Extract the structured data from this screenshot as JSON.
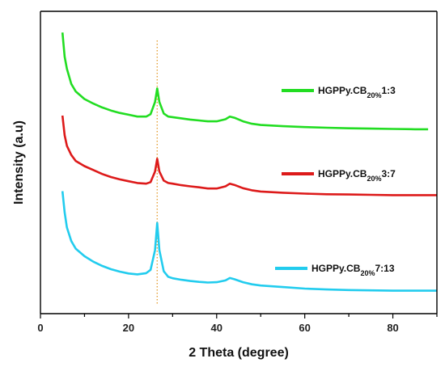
{
  "chart_data": {
    "type": "line",
    "title": "",
    "xlabel": "2 Theta (degree)",
    "ylabel": "Intensity (a.u)",
    "xlim": [
      0,
      90
    ],
    "y_ticks_shown": false,
    "x_ticks": [
      0,
      20,
      40,
      60,
      80
    ],
    "grid": false,
    "legend_position": "right, beside each trace",
    "reference_line": {
      "x": 26.5,
      "color": "#e39a2a",
      "style": "dotted"
    },
    "series": [
      {
        "name": "HGPPy.CB20%1:3",
        "label_main": "HGPPy.CB",
        "label_sub": "20%",
        "label_ratio": "1:3",
        "color": "#22dd22",
        "x": [
          5,
          5.5,
          6,
          7,
          8,
          10,
          12,
          14,
          16,
          18,
          20,
          22,
          24,
          25,
          26,
          26.5,
          27,
          28,
          29,
          30,
          32,
          34,
          36,
          38,
          40,
          42,
          43,
          44,
          46,
          48,
          50,
          55,
          60,
          65,
          70,
          75,
          80,
          85,
          88
        ],
        "y": [
          0.93,
          0.85,
          0.81,
          0.76,
          0.735,
          0.71,
          0.695,
          0.682,
          0.672,
          0.664,
          0.658,
          0.652,
          0.652,
          0.66,
          0.7,
          0.745,
          0.7,
          0.662,
          0.652,
          0.65,
          0.646,
          0.642,
          0.639,
          0.636,
          0.636,
          0.643,
          0.652,
          0.648,
          0.636,
          0.628,
          0.624,
          0.62,
          0.617,
          0.615,
          0.613,
          0.612,
          0.611,
          0.61,
          0.61
        ]
      },
      {
        "name": "HGPPy.CB20%3:7",
        "label_main": "HGPPy.CB",
        "label_sub": "20%",
        "label_ratio": "3:7",
        "color": "#dd1a1a",
        "x": [
          5,
          5.5,
          6,
          7,
          8,
          10,
          12,
          14,
          16,
          18,
          20,
          22,
          24,
          25,
          26,
          26.5,
          27,
          28,
          29,
          30,
          32,
          34,
          36,
          38,
          40,
          42,
          43,
          44,
          46,
          48,
          50,
          55,
          60,
          65,
          70,
          75,
          80,
          85,
          90
        ],
        "y": [
          0.655,
          0.59,
          0.555,
          0.525,
          0.505,
          0.488,
          0.475,
          0.462,
          0.452,
          0.444,
          0.438,
          0.432,
          0.43,
          0.435,
          0.47,
          0.512,
          0.47,
          0.44,
          0.432,
          0.43,
          0.425,
          0.421,
          0.418,
          0.414,
          0.414,
          0.421,
          0.43,
          0.426,
          0.415,
          0.408,
          0.404,
          0.4,
          0.397,
          0.395,
          0.394,
          0.393,
          0.392,
          0.392,
          0.392
        ]
      },
      {
        "name": "HGPPy.CB20%7:13",
        "label_main": "HGPPy.CB",
        "label_sub": "20%",
        "label_ratio": "7:13",
        "color": "#22ccee",
        "x": [
          5,
          5.5,
          6,
          7,
          8,
          10,
          12,
          14,
          16,
          18,
          20,
          22,
          24,
          25,
          26,
          26.5,
          27,
          28,
          29,
          30,
          32,
          34,
          36,
          38,
          40,
          42,
          43,
          44,
          46,
          48,
          50,
          55,
          60,
          65,
          70,
          75,
          80,
          85,
          90
        ],
        "y": [
          0.405,
          0.335,
          0.285,
          0.24,
          0.215,
          0.19,
          0.172,
          0.158,
          0.147,
          0.139,
          0.133,
          0.13,
          0.134,
          0.145,
          0.21,
          0.3,
          0.21,
          0.14,
          0.122,
          0.117,
          0.112,
          0.108,
          0.105,
          0.103,
          0.104,
          0.11,
          0.118,
          0.114,
          0.104,
          0.097,
          0.093,
          0.088,
          0.083,
          0.08,
          0.078,
          0.077,
          0.076,
          0.076,
          0.076
        ]
      }
    ]
  }
}
